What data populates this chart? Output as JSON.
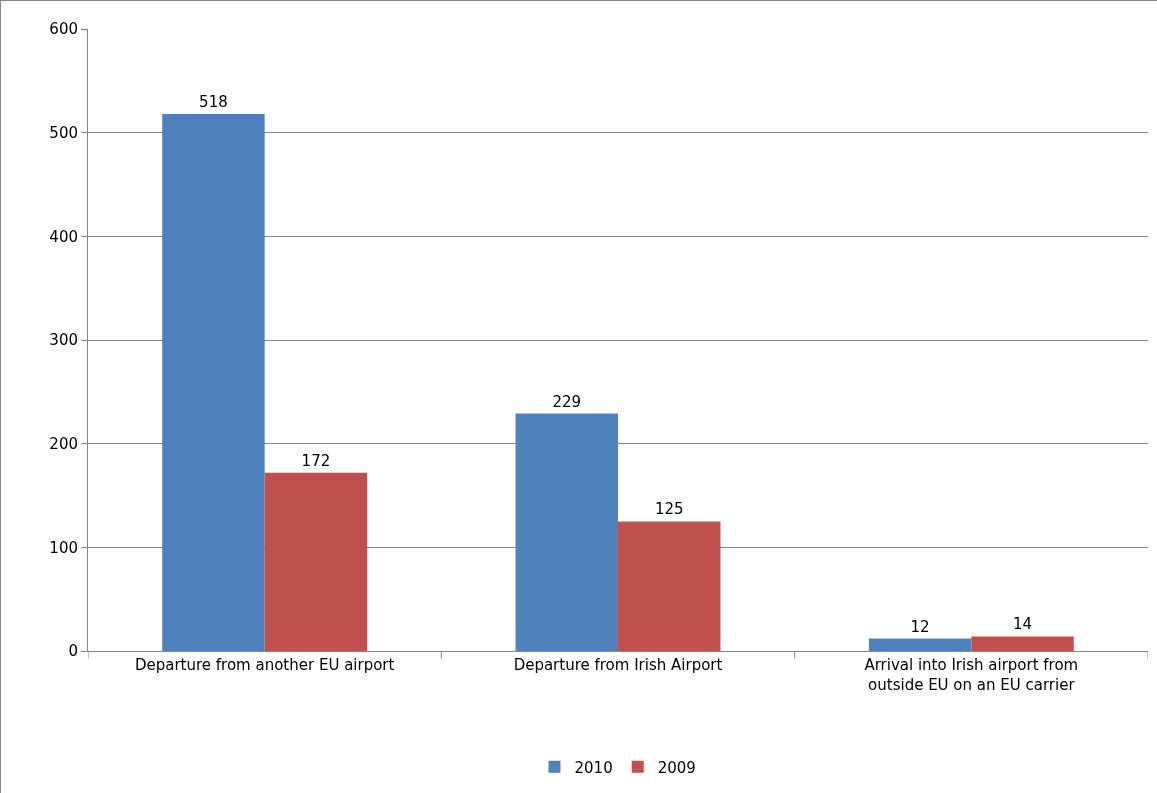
{
  "chart_data": {
    "type": "bar",
    "categories": [
      "Departure from another EU airport",
      "Departure from Irish Airport",
      "Arrival into Irish airport from outside EU on an EU carrier"
    ],
    "series": [
      {
        "name": "2010",
        "color": "#4f81bd",
        "values": [
          518,
          229,
          12
        ]
      },
      {
        "name": "2009",
        "color": "#c0504d",
        "values": [
          172,
          125,
          14
        ]
      }
    ],
    "ylim": [
      0,
      600
    ],
    "yticks": [
      0,
      100,
      200,
      300,
      400,
      500,
      600
    ],
    "grid": "y",
    "legend": "bottom",
    "data_labels": true
  }
}
